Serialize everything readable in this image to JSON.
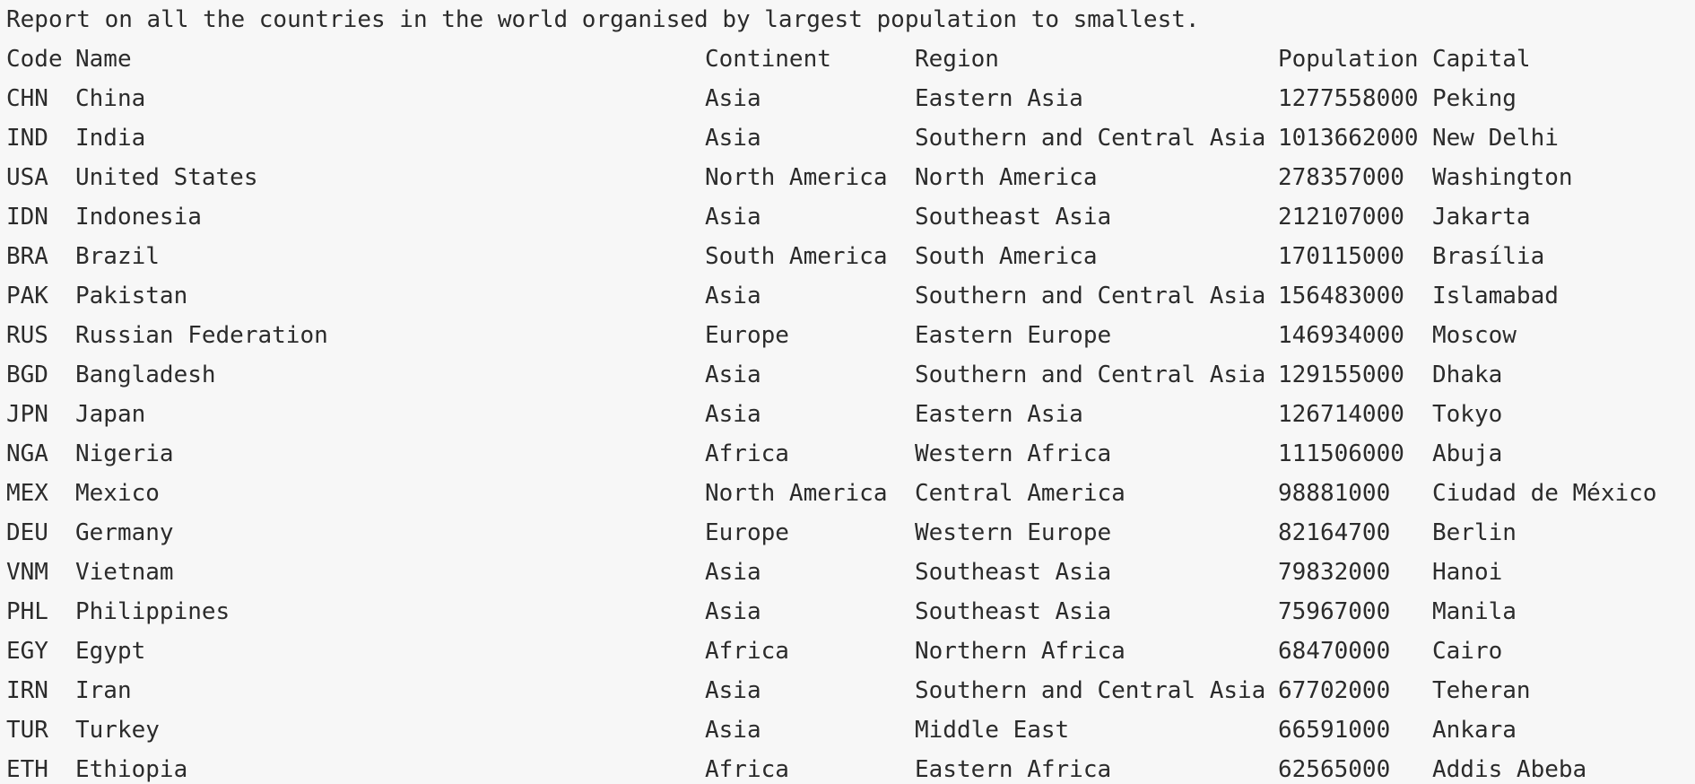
{
  "report": {
    "title": "Report on all the countries in the world organised by largest population to smallest.",
    "headers": {
      "code": "Code",
      "name": "Name",
      "continent": "Continent",
      "region": "Region",
      "population": "Population",
      "capital": "Capital"
    },
    "rows": [
      {
        "code": "CHN",
        "name": "China",
        "continent": "Asia",
        "region": "Eastern Asia",
        "population": "1277558000",
        "capital": "Peking"
      },
      {
        "code": "IND",
        "name": "India",
        "continent": "Asia",
        "region": "Southern and Central Asia",
        "population": "1013662000",
        "capital": "New Delhi"
      },
      {
        "code": "USA",
        "name": "United States",
        "continent": "North America",
        "region": "North America",
        "population": "278357000",
        "capital": "Washington"
      },
      {
        "code": "IDN",
        "name": "Indonesia",
        "continent": "Asia",
        "region": "Southeast Asia",
        "population": "212107000",
        "capital": "Jakarta"
      },
      {
        "code": "BRA",
        "name": "Brazil",
        "continent": "South America",
        "region": "South America",
        "population": "170115000",
        "capital": "Brasília"
      },
      {
        "code": "PAK",
        "name": "Pakistan",
        "continent": "Asia",
        "region": "Southern and Central Asia",
        "population": "156483000",
        "capital": "Islamabad"
      },
      {
        "code": "RUS",
        "name": "Russian Federation",
        "continent": "Europe",
        "region": "Eastern Europe",
        "population": "146934000",
        "capital": "Moscow"
      },
      {
        "code": "BGD",
        "name": "Bangladesh",
        "continent": "Asia",
        "region": "Southern and Central Asia",
        "population": "129155000",
        "capital": "Dhaka"
      },
      {
        "code": "JPN",
        "name": "Japan",
        "continent": "Asia",
        "region": "Eastern Asia",
        "population": "126714000",
        "capital": "Tokyo"
      },
      {
        "code": "NGA",
        "name": "Nigeria",
        "continent": "Africa",
        "region": "Western Africa",
        "population": "111506000",
        "capital": "Abuja"
      },
      {
        "code": "MEX",
        "name": "Mexico",
        "continent": "North America",
        "region": "Central America",
        "population": "98881000",
        "capital": "Ciudad de México"
      },
      {
        "code": "DEU",
        "name": "Germany",
        "continent": "Europe",
        "region": "Western Europe",
        "population": "82164700",
        "capital": "Berlin"
      },
      {
        "code": "VNM",
        "name": "Vietnam",
        "continent": "Asia",
        "region": "Southeast Asia",
        "population": "79832000",
        "capital": "Hanoi"
      },
      {
        "code": "PHL",
        "name": "Philippines",
        "continent": "Asia",
        "region": "Southeast Asia",
        "population": "75967000",
        "capital": "Manila"
      },
      {
        "code": "EGY",
        "name": "Egypt",
        "continent": "Africa",
        "region": "Northern Africa",
        "population": "68470000",
        "capital": "Cairo"
      },
      {
        "code": "IRN",
        "name": "Iran",
        "continent": "Asia",
        "region": "Southern and Central Asia",
        "population": "67702000",
        "capital": "Teheran"
      },
      {
        "code": "TUR",
        "name": "Turkey",
        "continent": "Asia",
        "region": "Middle East",
        "population": "66591000",
        "capital": "Ankara"
      },
      {
        "code": "ETH",
        "name": "Ethiopia",
        "continent": "Africa",
        "region": "Eastern Africa",
        "population": "62565000",
        "capital": "Addis Abeba"
      }
    ]
  }
}
